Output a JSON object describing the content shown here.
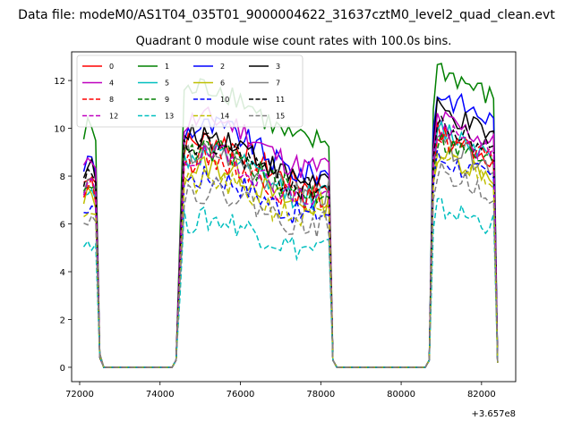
{
  "figure": {
    "suptitle": "Data file: modeM0/AS1T04_035T01_9000004622_31637cztM0_level2_quad_clean.evt",
    "offset_label": "+3.657e8"
  },
  "chart_data": {
    "type": "line",
    "title": "Quadrant 0 module wise count rates with 100.0s bins.",
    "xlabel": "",
    "ylabel": "",
    "xlim": [
      71800,
      82850
    ],
    "ylim": [
      -0.6,
      13.2
    ],
    "x_ticks": [
      72000,
      74000,
      76000,
      78000,
      80000,
      82000
    ],
    "y_ticks": [
      0,
      2,
      4,
      6,
      8,
      10,
      12
    ],
    "x_offset": 365700000,
    "grid": false,
    "legend_position": "top-left",
    "legend_columns": 4,
    "segments": [
      {
        "start": 72200,
        "end": 72400,
        "rise_end": null
      },
      {
        "start": 74400,
        "end": 78200
      },
      {
        "start": 80700,
        "end": 82300
      }
    ],
    "series": [
      {
        "name": "0",
        "color": "#ff0000",
        "dash": false,
        "level": 8.6,
        "level2": 9.4
      },
      {
        "name": "1",
        "color": "#008000",
        "dash": false,
        "level": 10.6,
        "level2": 12.0
      },
      {
        "name": "2",
        "color": "#0000ff",
        "dash": false,
        "level": 9.1,
        "level2": 11.0
      },
      {
        "name": "3",
        "color": "#000000",
        "dash": false,
        "level": 8.8,
        "level2": 10.3
      },
      {
        "name": "4",
        "color": "#bf00bf",
        "dash": false,
        "level": 9.4,
        "level2": 10.0
      },
      {
        "name": "5",
        "color": "#00bfbf",
        "dash": false,
        "level": 8.0,
        "level2": 9.6
      },
      {
        "name": "6",
        "color": "#bfbf00",
        "dash": false,
        "level": 7.6,
        "level2": 8.6
      },
      {
        "name": "7",
        "color": "#808080",
        "dash": false,
        "level": 8.1,
        "level2": 9.0
      },
      {
        "name": "8",
        "color": "#ff0000",
        "dash": true,
        "level": 7.9,
        "level2": 9.2
      },
      {
        "name": "9",
        "color": "#008000",
        "dash": true,
        "level": 8.2,
        "level2": 9.1
      },
      {
        "name": "10",
        "color": "#0000ff",
        "dash": true,
        "level": 7.2,
        "level2": 8.4
      },
      {
        "name": "11",
        "color": "#000000",
        "dash": true,
        "level": 8.4,
        "level2": 9.7
      },
      {
        "name": "12",
        "color": "#bf00bf",
        "dash": true,
        "level": 8.0,
        "level2": 9.5
      },
      {
        "name": "13",
        "color": "#00bfbf",
        "dash": true,
        "level": 5.6,
        "level2": 6.4
      },
      {
        "name": "14",
        "color": "#bfbf00",
        "dash": true,
        "level": 7.0,
        "level2": 8.5
      },
      {
        "name": "15",
        "color": "#808080",
        "dash": true,
        "level": 6.7,
        "level2": 7.8
      }
    ]
  }
}
